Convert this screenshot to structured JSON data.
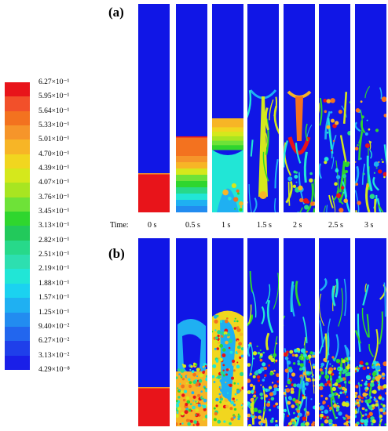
{
  "legend": {
    "colors": [
      "#e8141a",
      "#f2502a",
      "#f3721f",
      "#f6952a",
      "#f7b526",
      "#f1d61f",
      "#d5e81c",
      "#a8e521",
      "#6ee238",
      "#2fd62e",
      "#22c95b",
      "#27d98a",
      "#2ddfb0",
      "#21e6d6",
      "#1bd2f0",
      "#1fb0f2",
      "#228cf0",
      "#2266ee",
      "#1f3fea",
      "#1a1fe8"
    ],
    "labels": [
      "6.27×10⁻¹",
      "5.95×10⁻¹",
      "5.64×10⁻¹",
      "5.33×10⁻¹",
      "5.01×10⁻¹",
      "4.70×10⁻¹",
      "4.39×10⁻¹",
      "4.07×10⁻¹",
      "3.76×10⁻¹",
      "3.45×10⁻¹",
      "3.13×10⁻¹",
      "2.82×10⁻¹",
      "2.51×10⁻¹",
      "2.19×10⁻¹",
      "1.88×10⁻¹",
      "1.57×10⁻¹",
      "1.25×10⁻¹",
      "9.40×10⁻²",
      "6.27×10⁻²",
      "3.13×10⁻²",
      "4.29×10⁻⁸"
    ]
  },
  "panel_a": {
    "label": "(a)"
  },
  "panel_b": {
    "label": "(b)"
  },
  "time_axis": {
    "title": "Time:",
    "labels": [
      "0 s",
      "0.5 s",
      "1 s",
      "1.5 s",
      "2 s",
      "2.5 s",
      "3 s"
    ]
  },
  "colors": {
    "background_fluid": "#1016e6",
    "particle_bed": "#e8141a"
  }
}
